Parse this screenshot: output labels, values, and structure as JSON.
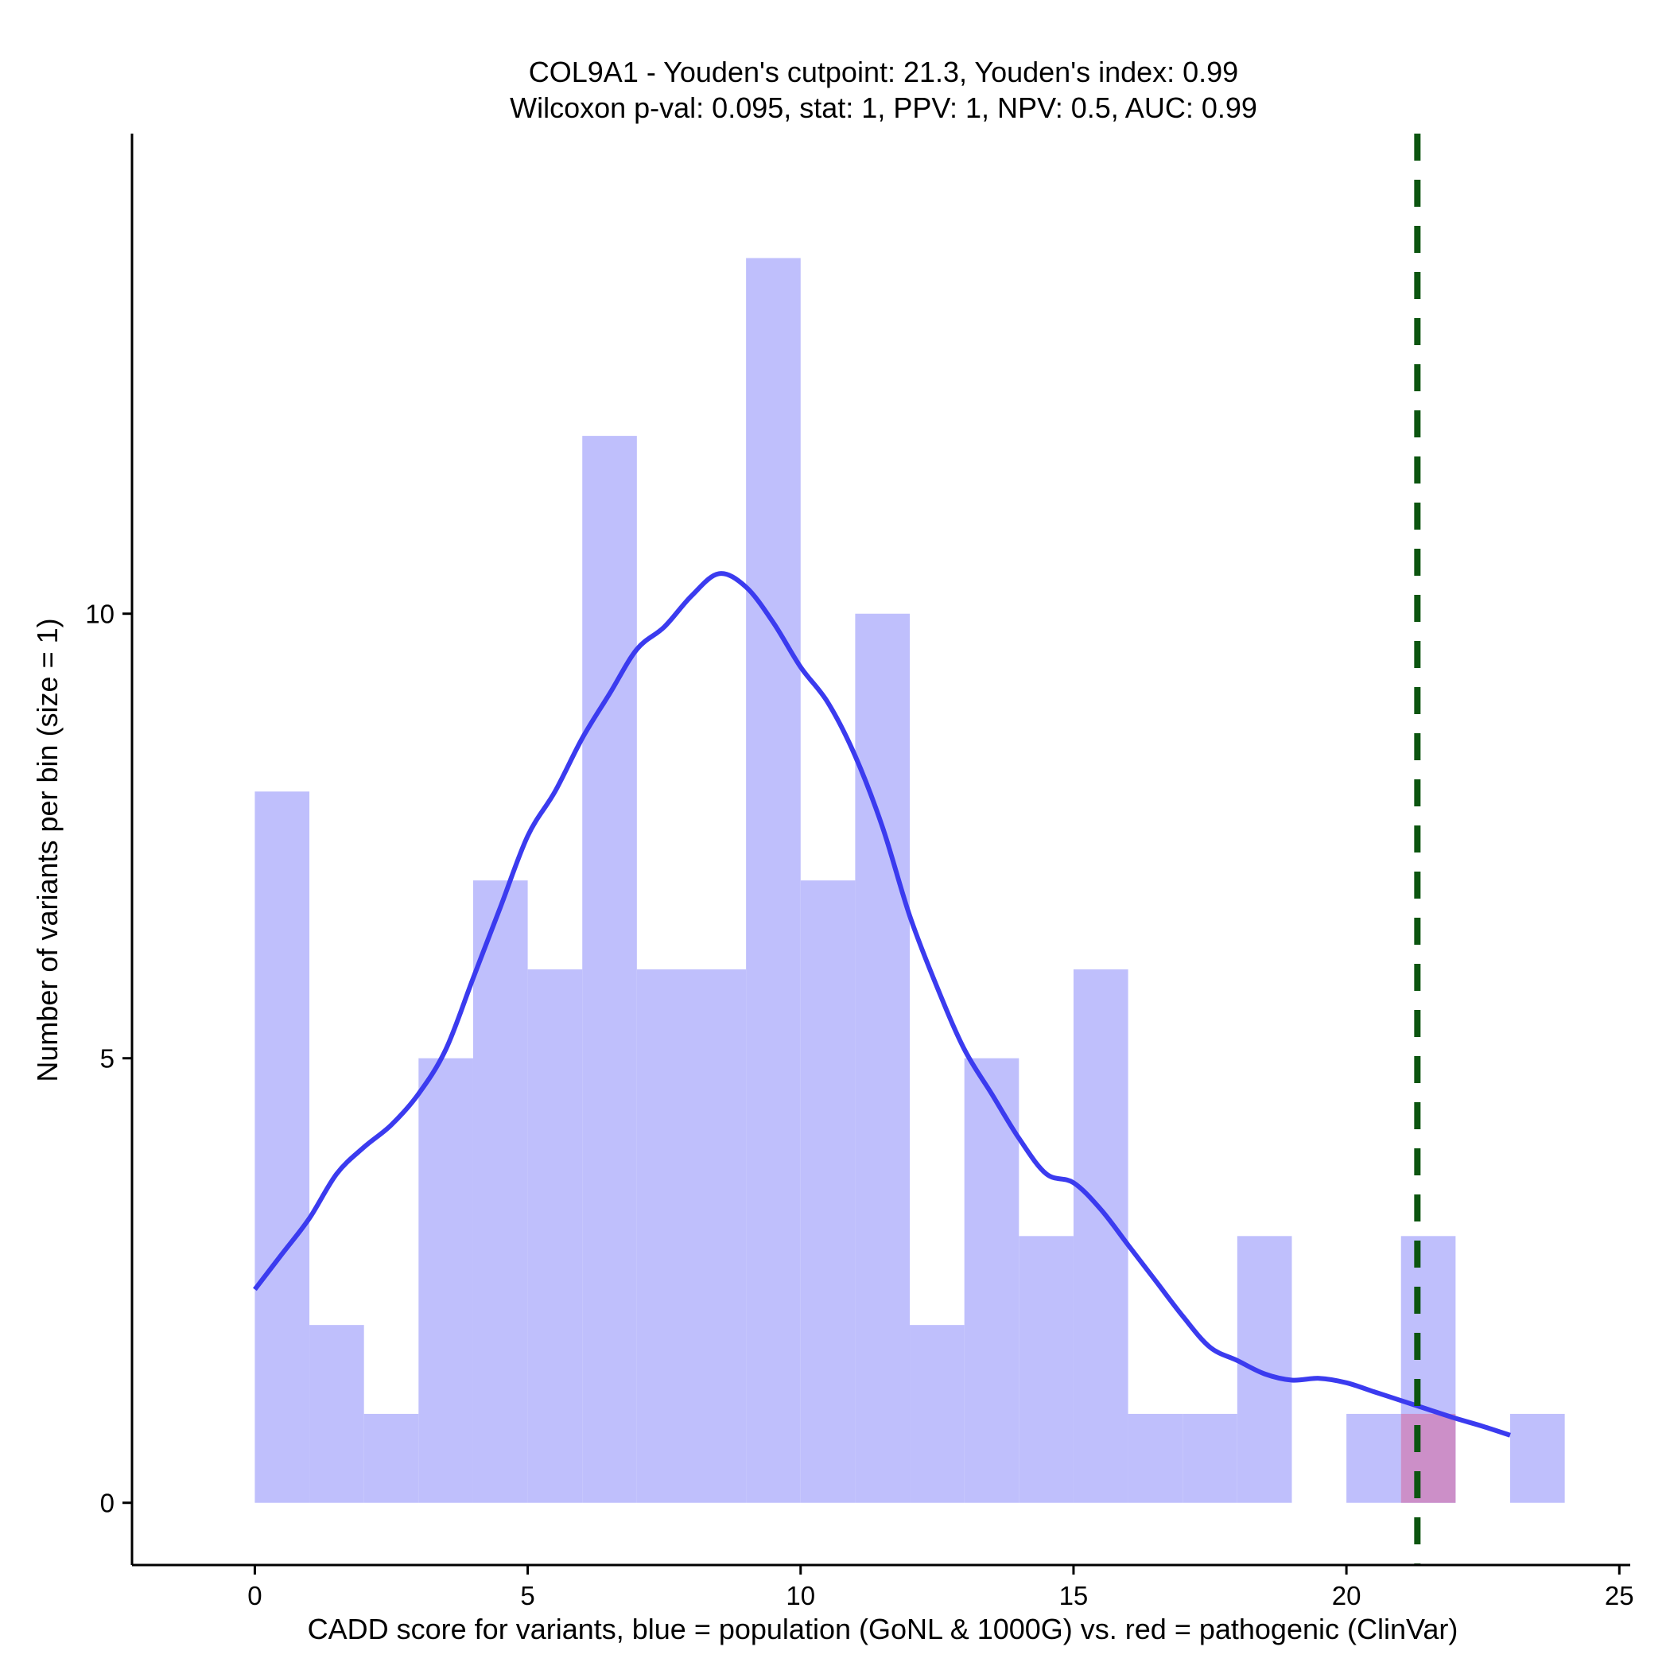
{
  "chart_data": {
    "type": "bar",
    "title": "COL9A1 - Youden's cutpoint: 21.3, Youden's index: 0.99",
    "subtitle": "Wilcoxon p-val: 0.095, stat: 1, PPV: 1, NPV: 0.5, AUC: 0.99",
    "xlabel": "CADD score for variants, blue = population (GoNL & 1000G) vs. red = pathogenic (ClinVar)",
    "ylabel": "Number of variants per bin (size = 1)",
    "xlim": [
      -2.25,
      25.2
    ],
    "ylim": [
      -0.7,
      15.4
    ],
    "xticks": [
      0,
      5,
      10,
      15,
      20,
      25
    ],
    "yticks": [
      0,
      5,
      10
    ],
    "bin_size": 1,
    "series": [
      {
        "name": "population (GoNL & 1000G)",
        "color": "#bfbffc",
        "bins": [
          {
            "x0": 0,
            "x1": 1,
            "count": 8
          },
          {
            "x0": 1,
            "x1": 2,
            "count": 2
          },
          {
            "x0": 2,
            "x1": 3,
            "count": 1
          },
          {
            "x0": 3,
            "x1": 4,
            "count": 5
          },
          {
            "x0": 4,
            "x1": 5,
            "count": 7
          },
          {
            "x0": 5,
            "x1": 6,
            "count": 6
          },
          {
            "x0": 6,
            "x1": 7,
            "count": 12
          },
          {
            "x0": 7,
            "x1": 8,
            "count": 6
          },
          {
            "x0": 8,
            "x1": 9,
            "count": 6
          },
          {
            "x0": 9,
            "x1": 10,
            "count": 14
          },
          {
            "x0": 10,
            "x1": 11,
            "count": 7
          },
          {
            "x0": 11,
            "x1": 12,
            "count": 10
          },
          {
            "x0": 12,
            "x1": 13,
            "count": 2
          },
          {
            "x0": 13,
            "x1": 14,
            "count": 5
          },
          {
            "x0": 14,
            "x1": 15,
            "count": 3
          },
          {
            "x0": 15,
            "x1": 16,
            "count": 6
          },
          {
            "x0": 16,
            "x1": 17,
            "count": 1
          },
          {
            "x0": 17,
            "x1": 18,
            "count": 1
          },
          {
            "x0": 18,
            "x1": 19,
            "count": 3
          },
          {
            "x0": 19,
            "x1": 20,
            "count": 0
          },
          {
            "x0": 20,
            "x1": 21,
            "count": 1
          },
          {
            "x0": 21,
            "x1": 22,
            "count": 3
          },
          {
            "x0": 22,
            "x1": 23,
            "count": 0
          },
          {
            "x0": 23,
            "x1": 24,
            "count": 1
          }
        ]
      },
      {
        "name": "pathogenic (ClinVar)",
        "color": "#cc8fc8",
        "bins": [
          {
            "x0": 21,
            "x1": 22,
            "count": 1
          }
        ]
      }
    ],
    "density_curve": {
      "name": "population density (scaled)",
      "color": "#3b3bef",
      "x": [
        0,
        0.5,
        1,
        1.5,
        2,
        2.5,
        3,
        3.5,
        4,
        4.5,
        5,
        5.5,
        6,
        6.5,
        7,
        7.5,
        8,
        8.5,
        9,
        9.5,
        10,
        10.5,
        11,
        11.5,
        12,
        12.5,
        13,
        13.5,
        14,
        14.5,
        15,
        15.5,
        16,
        16.5,
        17,
        17.5,
        18,
        18.5,
        19,
        19.5,
        20,
        20.5,
        21,
        21.5,
        22,
        22.5,
        23
      ],
      "y": [
        2.4,
        2.8,
        3.2,
        3.7,
        4.0,
        4.25,
        4.6,
        5.1,
        5.9,
        6.7,
        7.5,
        8.0,
        8.6,
        9.1,
        9.6,
        9.85,
        10.2,
        10.45,
        10.3,
        9.9,
        9.4,
        9.0,
        8.4,
        7.6,
        6.6,
        5.8,
        5.1,
        4.6,
        4.1,
        3.7,
        3.6,
        3.3,
        2.9,
        2.5,
        2.1,
        1.75,
        1.6,
        1.45,
        1.38,
        1.4,
        1.35,
        1.25,
        1.15,
        1.05,
        0.95,
        0.86,
        0.76
      ]
    },
    "cutpoint": {
      "label": "Youden's cutpoint",
      "x": 21.3,
      "color": "#0c5510",
      "style": "dashed"
    },
    "grid": false,
    "legend": "none"
  }
}
